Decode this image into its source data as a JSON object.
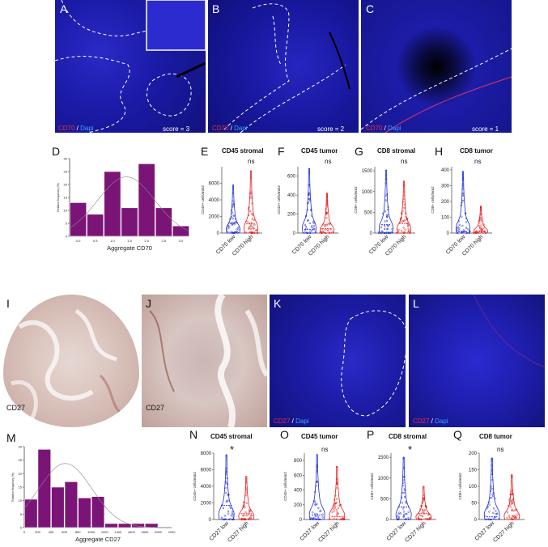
{
  "panels": {
    "A": {
      "letter": "A",
      "stain": "CD70",
      "sep": " / ",
      "counter": "Dapi",
      "score": "score = 3"
    },
    "B": {
      "letter": "B",
      "stain": "CD70",
      "sep": " / ",
      "counter": "Dapi",
      "score": "score = 2"
    },
    "C": {
      "letter": "C",
      "stain": "CD70",
      "sep": " / ",
      "counter": "Dapi",
      "score": "score = 1"
    },
    "D": {
      "letter": "D"
    },
    "E": {
      "letter": "E",
      "title": "CD45 stromal",
      "sig": "ns"
    },
    "F": {
      "letter": "F",
      "title": "CD45 tumor",
      "sig": "ns"
    },
    "G": {
      "letter": "G",
      "title": "CD8 stromal",
      "sig": "ns"
    },
    "H": {
      "letter": "H",
      "title": "CD8 tumor",
      "sig": "ns"
    },
    "I": {
      "letter": "I",
      "stain": "CD27"
    },
    "J": {
      "letter": "J",
      "stain": "CD27"
    },
    "K": {
      "letter": "K",
      "stain": "CD27",
      "sep": " / ",
      "counter": "Dapi"
    },
    "L": {
      "letter": "L",
      "stain": "CD27",
      "sep": " / ",
      "counter": "Dapi"
    },
    "M": {
      "letter": "M"
    },
    "N": {
      "letter": "N",
      "title": "CD45 stromal",
      "sig": "*"
    },
    "O": {
      "letter": "O",
      "title": "CD45 tumor",
      "sig": "ns"
    },
    "P": {
      "letter": "P",
      "title": "CD8 stromal",
      "sig": "*"
    },
    "Q": {
      "letter": "Q",
      "title": "CD8 tumor",
      "sig": "ns"
    }
  },
  "colors": {
    "bar": "#7b1477",
    "low": "#1f2bd8",
    "high": "#e31b1b",
    "fluor": "#1a1a9e"
  },
  "chart_data": [
    {
      "id": "D",
      "type": "bar",
      "xlabel": "Aggregate CD70",
      "ylabel": "Relative frequency (%)",
      "categories": [
        "0.0",
        "0.5",
        "1.0",
        "1.5",
        "2.0",
        "2.5",
        "3.0"
      ],
      "values": [
        13,
        8.5,
        25,
        11,
        28,
        11,
        4
      ],
      "ylim": [
        0,
        30
      ],
      "yticks": [
        "0",
        "5",
        "10",
        "15",
        "20",
        "25",
        "30"
      ],
      "xticks": [
        "0.0",
        "0.5",
        "1.0",
        "1.5",
        "2.0",
        "2.5",
        "3.0"
      ]
    },
    {
      "id": "E",
      "type": "violin",
      "ylabel": "CD45+ cells/mm2",
      "categories": [
        "CD70 low",
        "CD70 high"
      ],
      "ylim": [
        0,
        8000
      ],
      "yticks": [
        "0",
        "2000",
        "4000",
        "6000"
      ],
      "yvals": [
        0,
        2000,
        4000,
        6000
      ],
      "max": [
        5800,
        7500
      ],
      "median": [
        1200,
        1100
      ]
    },
    {
      "id": "F",
      "type": "violin",
      "ylabel": "CD45+ cells/mm2",
      "categories": [
        "CD70 low",
        "CD70 high"
      ],
      "ylim": [
        0,
        700
      ],
      "yticks": [
        "0",
        "200",
        "400",
        "600"
      ],
      "yvals": [
        0,
        200,
        400,
        600
      ],
      "max": [
        680,
        420
      ],
      "median": [
        40,
        45
      ]
    },
    {
      "id": "G",
      "type": "violin",
      "ylabel": "CD8+ cells/mm2",
      "categories": [
        "CD70 low",
        "CD70 high"
      ],
      "ylim": [
        0,
        1600
      ],
      "yticks": [
        "0",
        "500",
        "1000",
        "1500"
      ],
      "yvals": [
        0,
        500,
        1000,
        1500
      ],
      "max": [
        1520,
        1250
      ],
      "median": [
        200,
        230
      ]
    },
    {
      "id": "H",
      "type": "violin",
      "ylabel": "CD8+ cells/mm2",
      "categories": [
        "CD70 low",
        "CD70 high"
      ],
      "ylim": [
        0,
        420
      ],
      "yticks": [
        "0",
        "100",
        "200",
        "300",
        "400"
      ],
      "yvals": [
        0,
        100,
        200,
        300,
        400
      ],
      "max": [
        390,
        170
      ],
      "median": [
        8,
        8
      ]
    },
    {
      "id": "M",
      "type": "bar",
      "xlabel": "Aggregate CD27",
      "ylabel": "Relative frequency (%)",
      "categories": [
        "0",
        "200",
        "400",
        "600",
        "800",
        "1000",
        "1200",
        "1400",
        "1600",
        "1800",
        "2000"
      ],
      "values": [
        10.5,
        29,
        15,
        17,
        11,
        11.5,
        1.5,
        1.5,
        1.5,
        1.5,
        0
      ],
      "ylim": [
        0,
        30
      ],
      "yticks": [
        "0",
        "5",
        "10",
        "15",
        "20",
        "25",
        "30"
      ],
      "xticks": [
        "0",
        "200",
        "400",
        "600",
        "800",
        "1000",
        "1200",
        "1400",
        "1600",
        "1800",
        "2000",
        "2200"
      ]
    },
    {
      "id": "N",
      "type": "violin",
      "ylabel": "CD45+ cells/mm2",
      "categories": [
        "CD27 low",
        "CD27 high"
      ],
      "ylim": [
        0,
        8000
      ],
      "yticks": [
        "0",
        "2000",
        "4000",
        "6000",
        "8000"
      ],
      "yvals": [
        0,
        2000,
        4000,
        6000,
        8000
      ],
      "max": [
        7800,
        5200
      ],
      "median": [
        1700,
        700
      ]
    },
    {
      "id": "O",
      "type": "violin",
      "ylabel": "CD45+ cells/mm2",
      "categories": [
        "CD27 low",
        "CD27 high"
      ],
      "ylim": [
        0,
        900
      ],
      "yticks": [
        "0",
        "200",
        "400",
        "600",
        "800"
      ],
      "yvals": [
        0,
        200,
        400,
        600,
        800
      ],
      "max": [
        880,
        720
      ],
      "median": [
        60,
        40
      ]
    },
    {
      "id": "P",
      "type": "violin",
      "ylabel": "CD8+ cells/mm2",
      "categories": [
        "CD27 low",
        "CD27 high"
      ],
      "ylim": [
        0,
        1600
      ],
      "yticks": [
        "0",
        "500",
        "1000",
        "1500"
      ],
      "yvals": [
        0,
        500,
        1000,
        1500
      ],
      "max": [
        1500,
        800
      ],
      "median": [
        300,
        150
      ]
    },
    {
      "id": "Q",
      "type": "violin",
      "ylabel": "CD8+ cells/mm2",
      "categories": [
        "CD27 low",
        "CD27 high"
      ],
      "ylim": [
        0,
        200
      ],
      "yticks": [
        "0",
        "50",
        "100",
        "150",
        "200"
      ],
      "yvals": [
        0,
        50,
        100,
        150,
        200
      ],
      "max": [
        185,
        135
      ],
      "median": [
        8,
        5
      ]
    }
  ]
}
